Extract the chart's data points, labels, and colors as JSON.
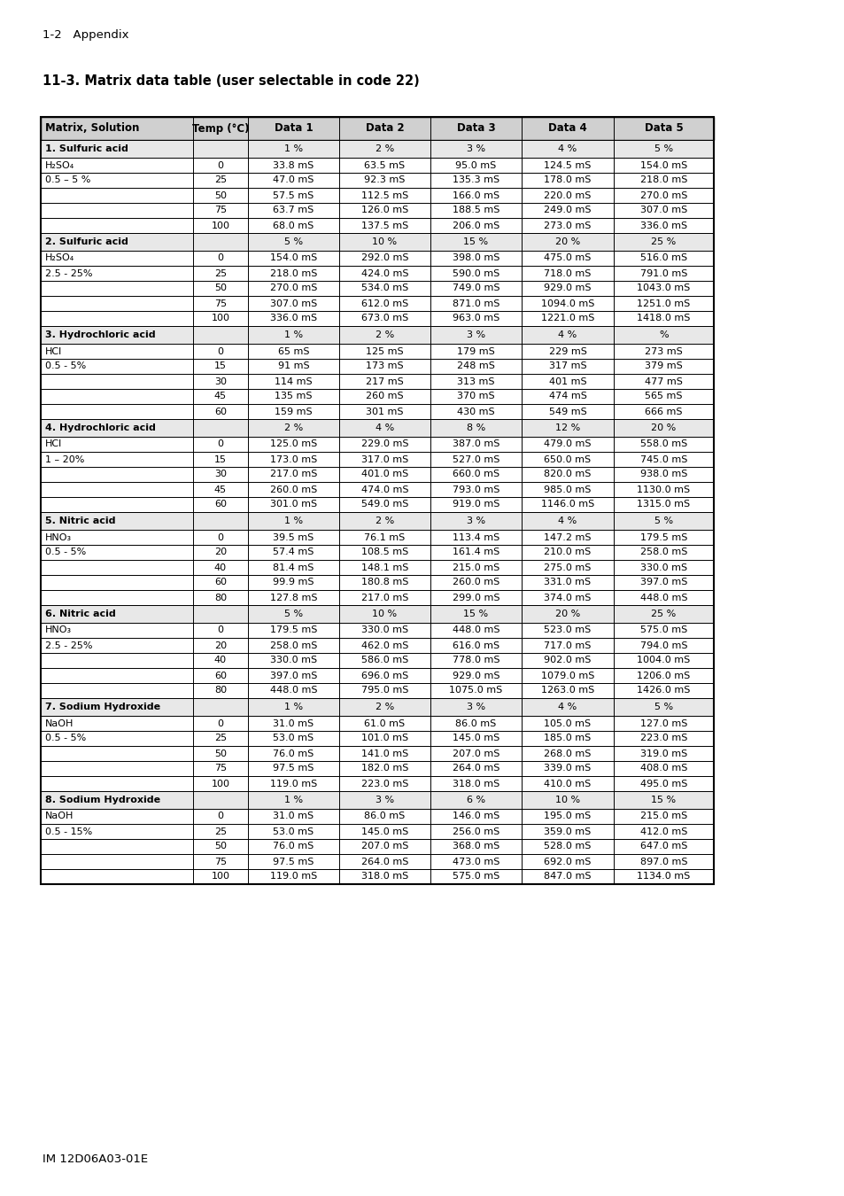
{
  "page_header": "1-2   Appendix",
  "section_title": "11-3. Matrix data table (user selectable in code 22)",
  "page_footer": "IM 12D06A03-01E",
  "col_headers": [
    "Matrix, Solution",
    "Temp (°C)",
    "Data 1",
    "Data 2",
    "Data 3",
    "Data 4",
    "Data 5"
  ],
  "sections": [
    {
      "title": "1. Sulfuric acid",
      "formula": "H₂SO₄",
      "range": "0.5 – 5 %",
      "data_labels": [
        "1 %",
        "2 %",
        "3 %",
        "4 %",
        "5 %"
      ],
      "temps": [
        "0",
        "25",
        "50",
        "75",
        "100"
      ],
      "rows": [
        [
          "33.8 mS",
          "63.5 mS",
          "95.0 mS",
          "124.5 mS",
          "154.0 mS"
        ],
        [
          "47.0 mS",
          "92.3 mS",
          "135.3 mS",
          "178.0 mS",
          "218.0 mS"
        ],
        [
          "57.5 mS",
          "112.5 mS",
          "166.0 mS",
          "220.0 mS",
          "270.0 mS"
        ],
        [
          "63.7 mS",
          "126.0 mS",
          "188.5 mS",
          "249.0 mS",
          "307.0 mS"
        ],
        [
          "68.0 mS",
          "137.5 mS",
          "206.0 mS",
          "273.0 mS",
          "336.0 mS"
        ]
      ]
    },
    {
      "title": "2. Sulfuric acid",
      "formula": "H₂SO₄",
      "range": "2.5 - 25%",
      "data_labels": [
        "5 %",
        "10 %",
        "15 %",
        "20 %",
        "25 %"
      ],
      "temps": [
        "0",
        "25",
        "50",
        "75",
        "100"
      ],
      "rows": [
        [
          "154.0 mS",
          "292.0 mS",
          "398.0 mS",
          "475.0 mS",
          "516.0 mS"
        ],
        [
          "218.0 mS",
          "424.0 mS",
          "590.0 mS",
          "718.0 mS",
          "791.0 mS"
        ],
        [
          "270.0 mS",
          "534.0 mS",
          "749.0 mS",
          "929.0 mS",
          "1043.0 mS"
        ],
        [
          "307.0 mS",
          "612.0 mS",
          "871.0 mS",
          "1094.0 mS",
          "1251.0 mS"
        ],
        [
          "336.0 mS",
          "673.0 mS",
          "963.0 mS",
          "1221.0 mS",
          "1418.0 mS"
        ]
      ]
    },
    {
      "title": "3. Hydrochloric acid",
      "formula": "HCl",
      "range": "0.5 - 5%",
      "data_labels": [
        "1 %",
        "2 %",
        "3 %",
        "4 %",
        "%"
      ],
      "temps": [
        "0",
        "15",
        "30",
        "45",
        "60"
      ],
      "rows": [
        [
          "65 mS",
          "125 mS",
          "179 mS",
          "229 mS",
          "273 mS"
        ],
        [
          "91 mS",
          "173 mS",
          "248 mS",
          "317 mS",
          "379 mS"
        ],
        [
          "114 mS",
          "217 mS",
          "313 mS",
          "401 mS",
          "477 mS"
        ],
        [
          "135 mS",
          "260 mS",
          "370 mS",
          "474 mS",
          "565 mS"
        ],
        [
          "159 mS",
          "301 mS",
          "430 mS",
          "549 mS",
          "666 mS"
        ]
      ]
    },
    {
      "title": "4. Hydrochloric acid",
      "formula": "HCl",
      "range": "1 – 20%",
      "data_labels": [
        "2 %",
        "4 %",
        "8 %",
        "12 %",
        "20 %"
      ],
      "temps": [
        "0",
        "15",
        "30",
        "45",
        "60"
      ],
      "rows": [
        [
          "125.0 mS",
          "229.0 mS",
          "387.0 mS",
          "479.0 mS",
          "558.0 mS"
        ],
        [
          "173.0 mS",
          "317.0 mS",
          "527.0 mS",
          "650.0 mS",
          "745.0 mS"
        ],
        [
          "217.0 mS",
          "401.0 mS",
          "660.0 mS",
          "820.0 mS",
          "938.0 mS"
        ],
        [
          "260.0 mS",
          "474.0 mS",
          "793.0 mS",
          "985.0 mS",
          "1130.0 mS"
        ],
        [
          "301.0 mS",
          "549.0 mS",
          "919.0 mS",
          "1146.0 mS",
          "1315.0 mS"
        ]
      ]
    },
    {
      "title": "5. Nitric acid",
      "formula": "HNO₃",
      "range": "0.5 - 5%",
      "data_labels": [
        "1 %",
        "2 %",
        "3 %",
        "4 %",
        "5 %"
      ],
      "temps": [
        "0",
        "20",
        "40",
        "60",
        "80"
      ],
      "rows": [
        [
          "39.5 mS",
          "76.1 mS",
          "113.4 mS",
          "147.2 mS",
          "179.5 mS"
        ],
        [
          "57.4 mS",
          "108.5 mS",
          "161.4 mS",
          "210.0 mS",
          "258.0 mS"
        ],
        [
          "81.4 mS",
          "148.1 mS",
          "215.0 mS",
          "275.0 mS",
          "330.0 mS"
        ],
        [
          "99.9 mS",
          "180.8 mS",
          "260.0 mS",
          "331.0 mS",
          "397.0 mS"
        ],
        [
          "127.8 mS",
          "217.0 mS",
          "299.0 mS",
          "374.0 mS",
          "448.0 mS"
        ]
      ]
    },
    {
      "title": "6. Nitric acid",
      "formula": "HNO₃",
      "range": "2.5 - 25%",
      "data_labels": [
        "5 %",
        "10 %",
        "15 %",
        "20 %",
        "25 %"
      ],
      "temps": [
        "0",
        "20",
        "40",
        "60",
        "80"
      ],
      "rows": [
        [
          "179.5 mS",
          "330.0 mS",
          "448.0 mS",
          "523.0 mS",
          "575.0 mS"
        ],
        [
          "258.0 mS",
          "462.0 mS",
          "616.0 mS",
          "717.0 mS",
          "794.0 mS"
        ],
        [
          "330.0 mS",
          "586.0 mS",
          "778.0 mS",
          "902.0 mS",
          "1004.0 mS"
        ],
        [
          "397.0 mS",
          "696.0 mS",
          "929.0 mS",
          "1079.0 mS",
          "1206.0 mS"
        ],
        [
          "448.0 mS",
          "795.0 mS",
          "1075.0 mS",
          "1263.0 mS",
          "1426.0 mS"
        ]
      ]
    },
    {
      "title": "7. Sodium Hydroxide",
      "formula": "NaOH",
      "range": "0.5 - 5%",
      "data_labels": [
        "1 %",
        "2 %",
        "3 %",
        "4 %",
        "5 %"
      ],
      "temps": [
        "0",
        "25",
        "50",
        "75",
        "100"
      ],
      "rows": [
        [
          "31.0 mS",
          "61.0 mS",
          "86.0 mS",
          "105.0 mS",
          "127.0 mS"
        ],
        [
          "53.0 mS",
          "101.0 mS",
          "145.0 mS",
          "185.0 mS",
          "223.0 mS"
        ],
        [
          "76.0 mS",
          "141.0 mS",
          "207.0 mS",
          "268.0 mS",
          "319.0 mS"
        ],
        [
          "97.5 mS",
          "182.0 mS",
          "264.0 mS",
          "339.0 mS",
          "408.0 mS"
        ],
        [
          "119.0 mS",
          "223.0 mS",
          "318.0 mS",
          "410.0 mS",
          "495.0 mS"
        ]
      ]
    },
    {
      "title": "8. Sodium Hydroxide",
      "formula": "NaOH",
      "range": "0.5 - 15%",
      "data_labels": [
        "1 %",
        "3 %",
        "6 %",
        "10 %",
        "15 %"
      ],
      "temps": [
        "0",
        "25",
        "50",
        "75",
        "100"
      ],
      "rows": [
        [
          "31.0 mS",
          "86.0 mS",
          "146.0 mS",
          "195.0 mS",
          "215.0 mS"
        ],
        [
          "53.0 mS",
          "145.0 mS",
          "256.0 mS",
          "359.0 mS",
          "412.0 mS"
        ],
        [
          "76.0 mS",
          "207.0 mS",
          "368.0 mS",
          "528.0 mS",
          "647.0 mS"
        ],
        [
          "97.5 mS",
          "264.0 mS",
          "473.0 mS",
          "692.0 mS",
          "897.0 mS"
        ],
        [
          "119.0 mS",
          "318.0 mS",
          "575.0 mS",
          "847.0 mS",
          "1134.0 mS"
        ]
      ]
    }
  ],
  "bg_color": "#ffffff",
  "border_color": "#000000",
  "header_font_size": 8.5,
  "body_font_size": 8.0,
  "title_font_size": 10.5,
  "page_header_fontsize": 9.5,
  "footer_fontsize": 9.5
}
